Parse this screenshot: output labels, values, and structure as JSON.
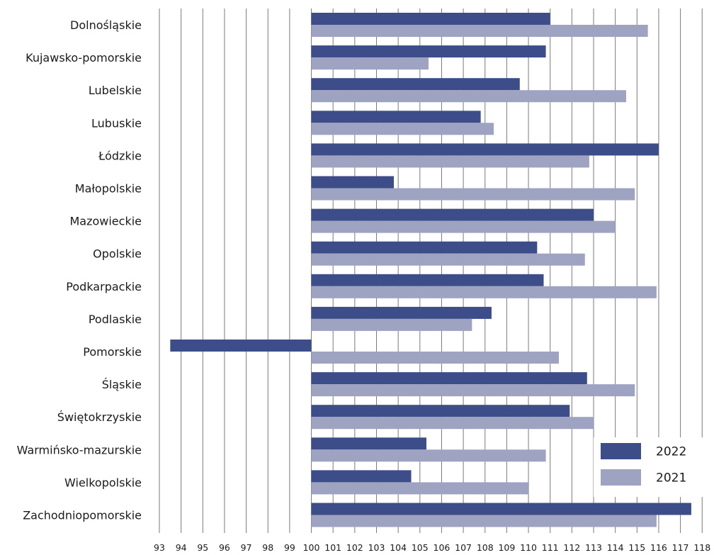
{
  "chart_data": {
    "type": "bar",
    "orientation": "horizontal",
    "categories": [
      "Dolnośląskie",
      "Kujawsko-pomorskie",
      "Lubelskie",
      "Lubuskie",
      "Łódzkie",
      "Małopolskie",
      "Mazowieckie",
      "Opolskie",
      "Podkarpackie",
      "Podlaskie",
      "Pomorskie",
      "Śląskie",
      "Świętokrzyskie",
      "Warmińsko-mazurskie",
      "Wielkopolskie",
      "Zachodniopomorskie"
    ],
    "baseline": 100,
    "xlim": [
      93,
      118
    ],
    "xticks": [
      93,
      94,
      95,
      96,
      97,
      98,
      99,
      100,
      101,
      102,
      103,
      104,
      105,
      106,
      107,
      108,
      109,
      110,
      111,
      112,
      113,
      114,
      115,
      116,
      117,
      118
    ],
    "grid": true,
    "legend_position": "bottom-right",
    "series": [
      {
        "name": "2022",
        "color": "#3d4d8a",
        "values": [
          111.0,
          110.8,
          109.6,
          107.8,
          116.0,
          103.8,
          113.0,
          110.4,
          110.7,
          108.3,
          93.5,
          112.7,
          111.9,
          105.3,
          104.6,
          117.5
        ]
      },
      {
        "name": "2021",
        "color": "#9ea3c2",
        "values": [
          115.5,
          105.4,
          114.5,
          108.4,
          112.8,
          114.9,
          114.0,
          112.6,
          115.9,
          107.4,
          111.4,
          114.9,
          113.0,
          110.8,
          110.0,
          115.9
        ]
      }
    ]
  }
}
